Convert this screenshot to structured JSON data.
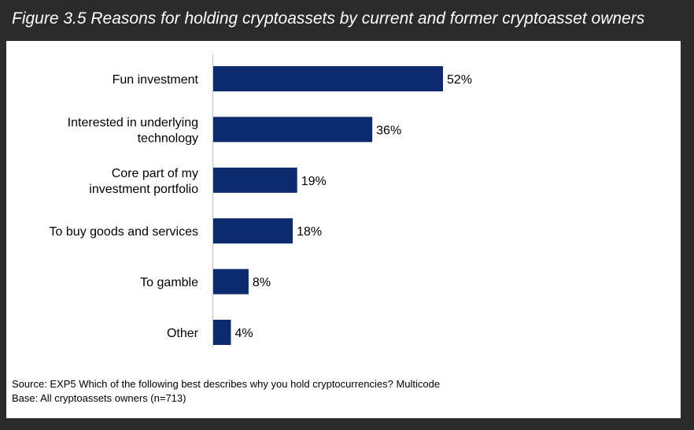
{
  "figure": {
    "title": "Figure 3.5 Reasons for holding cryptoassets by current and former cryptoasset owners"
  },
  "chart_data": {
    "type": "bar",
    "orientation": "horizontal",
    "categories": [
      [
        "Fun investment"
      ],
      [
        "Interested in underlying",
        "technology"
      ],
      [
        "Core part of my",
        "investment portfolio"
      ],
      [
        "To buy goods and services"
      ],
      [
        "To gamble"
      ],
      [
        "Other"
      ]
    ],
    "values": [
      52,
      36,
      19,
      18,
      8,
      4
    ],
    "value_labels": [
      "52%",
      "36%",
      "19%",
      "18%",
      "8%",
      "4%"
    ],
    "bar_color": "#0d2a6e",
    "xlim": [
      0,
      100
    ],
    "grid": false,
    "legend": "none"
  },
  "notes": {
    "source": "Source: EXP5 Which of the following best describes why you hold cryptocurrencies?   Multicode",
    "base": "Base: All cryptoassets owners (n=713)"
  }
}
